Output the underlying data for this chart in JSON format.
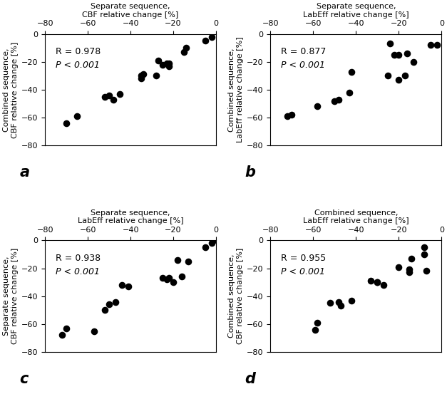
{
  "subplots": [
    {
      "label": "a",
      "R": "R = 0.978",
      "P": "P < 0.001",
      "xlabel": "Separate sequence,\nCBF relative change [%]",
      "ylabel": "Combined sequence,\nCBF relative change [%]",
      "x": [
        -70,
        -65,
        -52,
        -50,
        -48,
        -45,
        -35,
        -35,
        -34,
        -28,
        -27,
        -25,
        -23,
        -22,
        -22,
        -15,
        -14,
        -5,
        -2
      ],
      "y": [
        -64,
        -59,
        -45,
        -44,
        -47,
        -43,
        -32,
        -30,
        -29,
        -30,
        -19,
        -22,
        -21,
        -21,
        -23,
        -13,
        -10,
        -5,
        -2
      ]
    },
    {
      "label": "b",
      "R": "R = 0.877",
      "P": "P < 0.001",
      "xlabel": "Separate sequence,\nLabEff relative change [%]",
      "ylabel": "Combined sequence,\nLabEff relative change [%]",
      "x": [
        -72,
        -70,
        -58,
        -50,
        -48,
        -43,
        -42,
        -25,
        -24,
        -22,
        -20,
        -20,
        -17,
        -16,
        -13,
        -5,
        -2
      ],
      "y": [
        -59,
        -58,
        -52,
        -48,
        -47,
        -42,
        -27,
        -30,
        -7,
        -15,
        -15,
        -33,
        -30,
        -14,
        -20,
        -8,
        -8
      ]
    },
    {
      "label": "c",
      "R": "R = 0.938",
      "P": "P < 0.001",
      "xlabel": "Separate sequence,\nLabEff relative change [%]",
      "ylabel": "Separate sequence,\nCBF relative change [%]",
      "x": [
        -72,
        -70,
        -57,
        -52,
        -50,
        -47,
        -44,
        -41,
        -25,
        -23,
        -22,
        -20,
        -18,
        -16,
        -13,
        -5,
        -2,
        -1
      ],
      "y": [
        -68,
        -63,
        -65,
        -50,
        -46,
        -44,
        -32,
        -33,
        -27,
        -28,
        -27,
        -30,
        -14,
        -26,
        -15,
        -5,
        -2,
        0
      ]
    },
    {
      "label": "d",
      "R": "R = 0.955",
      "P": "P < 0.001",
      "xlabel": "Combined sequence,\nLabEff relative change [%]",
      "ylabel": "Combined sequence,\nCBF relative change [%]",
      "x": [
        -59,
        -58,
        -52,
        -48,
        -47,
        -42,
        -27,
        -30,
        -7,
        -15,
        -15,
        -33,
        -30,
        -14,
        -20,
        -8,
        -8
      ],
      "y": [
        -64,
        -59,
        -45,
        -44,
        -47,
        -43,
        -32,
        -30,
        -22,
        -21,
        -23,
        -29,
        -30,
        -13,
        -19,
        -5,
        -10
      ]
    }
  ],
  "xlim": [
    -80,
    0
  ],
  "ylim": [
    -80,
    0
  ],
  "xticks": [
    -80,
    -60,
    -40,
    -20,
    0
  ],
  "yticks": [
    -80,
    -60,
    -40,
    -20,
    0
  ],
  "dot_color": "black",
  "dot_size": 35,
  "font_size_label": 8,
  "font_size_annot": 9,
  "font_size_sublabel": 15,
  "background_color": "#ffffff"
}
